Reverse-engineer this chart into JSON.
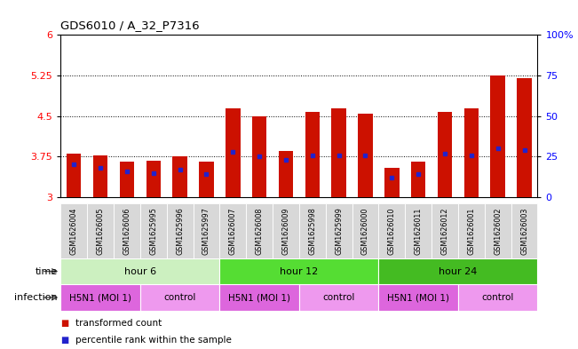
{
  "title": "GDS6010 / A_32_P7316",
  "samples": [
    "GSM1626004",
    "GSM1626005",
    "GSM1626006",
    "GSM1625995",
    "GSM1625996",
    "GSM1625997",
    "GSM1626007",
    "GSM1626008",
    "GSM1626009",
    "GSM1625998",
    "GSM1625999",
    "GSM1626000",
    "GSM1626010",
    "GSM1626011",
    "GSM1626012",
    "GSM1626001",
    "GSM1626002",
    "GSM1626003"
  ],
  "transformed_count": [
    3.8,
    3.77,
    3.65,
    3.68,
    3.75,
    3.65,
    4.65,
    4.5,
    3.85,
    4.58,
    4.65,
    4.55,
    3.55,
    3.65,
    4.58,
    4.65,
    5.25,
    5.2
  ],
  "percentile_rank": [
    20,
    18,
    16,
    15,
    17,
    14,
    28,
    25,
    23,
    26,
    26,
    26,
    12,
    14,
    27,
    26,
    30,
    29
  ],
  "bar_color": "#cc1100",
  "marker_color": "#2222cc",
  "ylim_left": [
    3.0,
    6.0
  ],
  "ylim_right": [
    0,
    100
  ],
  "yticks_left": [
    3.0,
    3.75,
    4.5,
    5.25,
    6.0
  ],
  "yticks_right": [
    0,
    25,
    50,
    75,
    100
  ],
  "ytick_labels_left": [
    "3",
    "3.75",
    "4.5",
    "5.25",
    "6"
  ],
  "ytick_labels_right": [
    "0",
    "25",
    "50",
    "75",
    "100%"
  ],
  "hlines": [
    3.75,
    4.5,
    5.25
  ],
  "time_groups": [
    {
      "label": "hour 6",
      "start": 0,
      "end": 6,
      "color": "#ccf0c0"
    },
    {
      "label": "hour 12",
      "start": 6,
      "end": 12,
      "color": "#55dd33"
    },
    {
      "label": "hour 24",
      "start": 12,
      "end": 18,
      "color": "#44bb22"
    }
  ],
  "infection_groups": [
    {
      "label": "H5N1 (MOI 1)",
      "start": 0,
      "end": 3,
      "color": "#dd66dd"
    },
    {
      "label": "control",
      "start": 3,
      "end": 6,
      "color": "#ee99ee"
    },
    {
      "label": "H5N1 (MOI 1)",
      "start": 6,
      "end": 9,
      "color": "#dd66dd"
    },
    {
      "label": "control",
      "start": 9,
      "end": 12,
      "color": "#ee99ee"
    },
    {
      "label": "H5N1 (MOI 1)",
      "start": 12,
      "end": 15,
      "color": "#dd66dd"
    },
    {
      "label": "control",
      "start": 15,
      "end": 18,
      "color": "#ee99ee"
    }
  ],
  "time_label": "time",
  "infection_label": "infection",
  "legend_items": [
    {
      "label": "transformed count",
      "color": "#cc1100"
    },
    {
      "label": "percentile rank within the sample",
      "color": "#2222cc"
    }
  ],
  "bar_width": 0.55,
  "bar_bottom": 3.0,
  "background_color": "#ffffff",
  "sample_box_color": "#d8d8d8",
  "chart_bg_color": "#ffffff"
}
